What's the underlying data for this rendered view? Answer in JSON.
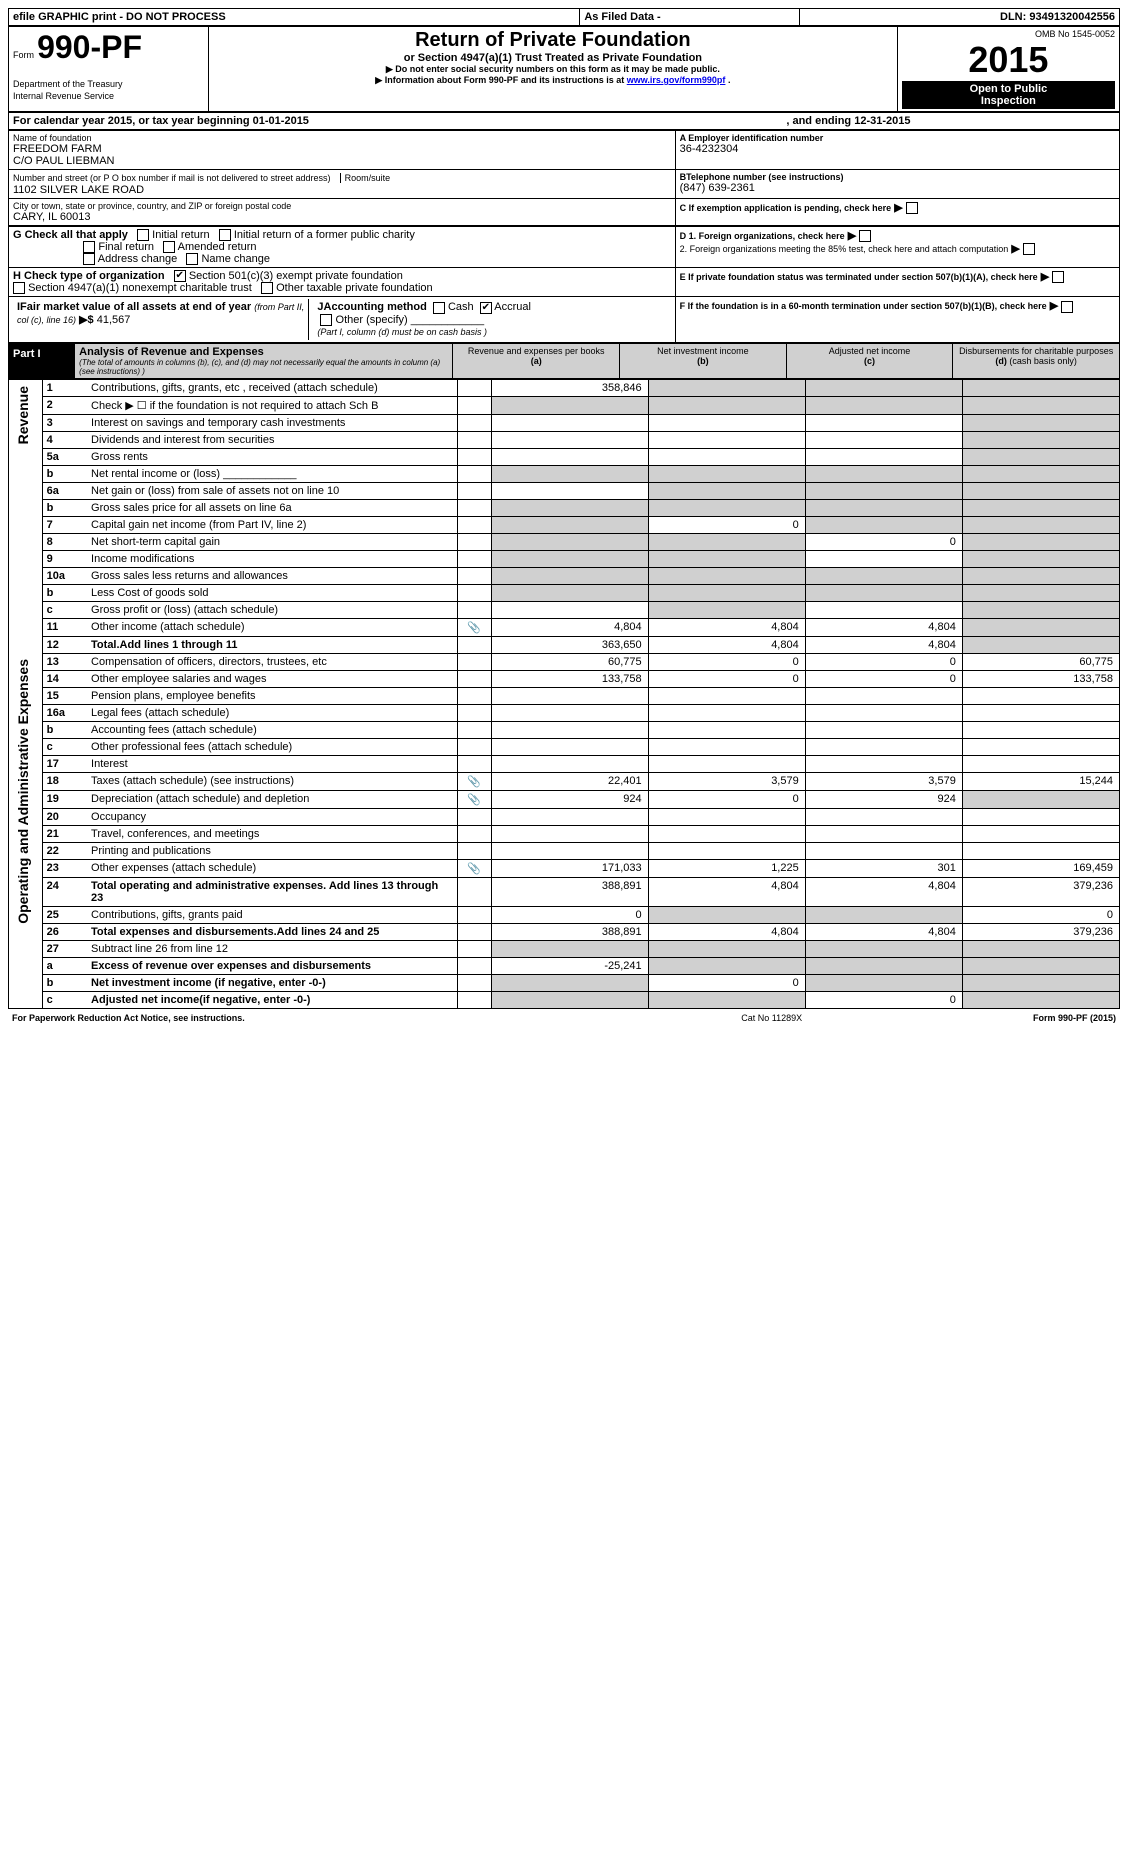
{
  "topbar": {
    "efile": "efile GRAPHIC print - DO NOT PROCESS",
    "asfiled": "As Filed Data -",
    "dln_label": "DLN:",
    "dln": "93491320042556"
  },
  "header": {
    "form_prefix": "Form",
    "form_num": "990-PF",
    "dept": "Department of the Treasury",
    "irs": "Internal Revenue Service",
    "title": "Return of Private Foundation",
    "subtitle": "or Section 4947(a)(1) Trust Treated as Private Foundation",
    "note1": "▶ Do not enter social security numbers on this form as it may be made public.",
    "note2_pre": "▶ Information about Form 990-PF and its instructions is at ",
    "note2_link": "www.irs.gov/form990pf",
    "note2_post": ".",
    "omb": "OMB No 1545-0052",
    "year": "2015",
    "open": "Open to Public",
    "inspection": "Inspection"
  },
  "period": {
    "label_pre": "For calendar year 2015, or tax year beginning ",
    "begin": "01-01-2015",
    "label_mid": ", and ending ",
    "end": "12-31-2015"
  },
  "identity": {
    "name_label": "Name of foundation",
    "name1": "FREEDOM FARM",
    "name2": "C/O PAUL LIEBMAN",
    "addr_label": "Number and street (or P O box number if mail is not delivered to street address)",
    "room_label": "Room/suite",
    "addr": "1102 SILVER LAKE ROAD",
    "city_label": "City or town, state or province, country, and ZIP or foreign postal code",
    "city": "CARY, IL 60013",
    "ein_label": "A Employer identification number",
    "ein": "36-4232304",
    "tel_label": "BTelephone number (see instructions)",
    "tel": "(847) 639-2361",
    "c_label": "C If exemption application is pending, check here"
  },
  "checks": {
    "g_label": "G Check all that apply",
    "g_initial": "Initial return",
    "g_initial_former": "Initial return of a former public charity",
    "g_final": "Final return",
    "g_amended": "Amended return",
    "g_address": "Address change",
    "g_name": "Name change",
    "d1": "D 1. Foreign organizations, check here",
    "d2": "2. Foreign organizations meeting the 85% test, check here and attach computation",
    "e_label": "E If private foundation status was terminated under section 507(b)(1)(A), check here",
    "h_label": "H Check type of organization",
    "h_501c3": "Section 501(c)(3) exempt private foundation",
    "h_4947": "Section 4947(a)(1) nonexempt charitable trust",
    "h_other": "Other taxable private foundation",
    "f_label": "F If the foundation is in a 60-month termination under section 507(b)(1)(B), check here",
    "i_label_pre": "IFair market value of all assets at end of year ",
    "i_label_from": "(from Part II, col (c), line 16)",
    "i_arrow": "▶$",
    "i_value": "41,567",
    "j_label": "JAccounting method",
    "j_cash": "Cash",
    "j_accrual": "Accrual",
    "j_other": "Other (specify)",
    "j_note": "(Part I, column (d) must be on cash basis )"
  },
  "part1": {
    "header": "Part I",
    "title": "Analysis of Revenue and Expenses",
    "subtitle": "(The total of amounts in columns (b), (c), and (d) may not necessarily equal the amounts in column (a) (see instructions) )",
    "col_a": "Revenue and expenses per books",
    "col_a_label": "(a)",
    "col_b": "Net investment income",
    "col_b_label": "(b)",
    "col_c": "Adjusted net income",
    "col_c_label": "(c)",
    "col_d": "Disbursements for charitable purposes",
    "col_d_label": "(d)",
    "col_d_note": "(cash basis only)"
  },
  "sections": {
    "revenue": "Revenue",
    "opex": "Operating and Administrative Expenses"
  },
  "rows": [
    {
      "n": "1",
      "label": "Contributions, gifts, grants, etc , received (attach schedule)",
      "a": "358,846",
      "b": "",
      "c": "",
      "d": "",
      "icon": false,
      "shade_b": true,
      "shade_c": true,
      "shade_d": true
    },
    {
      "n": "2",
      "label": "Check ▶ ☐ if the foundation is not required to attach Sch B",
      "a": "",
      "b": "",
      "c": "",
      "d": "",
      "icon": false,
      "shade_a": true,
      "shade_b": true,
      "shade_c": true,
      "shade_d": true
    },
    {
      "n": "3",
      "label": "Interest on savings and temporary cash investments",
      "a": "",
      "b": "",
      "c": "",
      "d": "",
      "shade_d": true
    },
    {
      "n": "4",
      "label": "Dividends and interest from securities",
      "a": "",
      "b": "",
      "c": "",
      "d": "",
      "shade_d": true
    },
    {
      "n": "5a",
      "label": "Gross rents",
      "a": "",
      "b": "",
      "c": "",
      "d": "",
      "shade_d": true
    },
    {
      "n": "b",
      "label": "Net rental income or (loss) ____________",
      "a": "",
      "b": "",
      "c": "",
      "d": "",
      "shade_a": true,
      "shade_b": true,
      "shade_c": true,
      "shade_d": true
    },
    {
      "n": "6a",
      "label": "Net gain or (loss) from sale of assets not on line 10",
      "a": "",
      "b": "",
      "c": "",
      "d": "",
      "shade_b": true,
      "shade_c": true,
      "shade_d": true
    },
    {
      "n": "b",
      "label": "Gross sales price for all assets on line 6a",
      "a": "",
      "b": "",
      "c": "",
      "d": "",
      "shade_a": true,
      "shade_b": true,
      "shade_c": true,
      "shade_d": true
    },
    {
      "n": "7",
      "label": "Capital gain net income (from Part IV, line 2)",
      "a": "",
      "b": "0",
      "c": "",
      "d": "",
      "shade_a": true,
      "shade_c": true,
      "shade_d": true
    },
    {
      "n": "8",
      "label": "Net short-term capital gain",
      "a": "",
      "b": "",
      "c": "0",
      "d": "",
      "shade_a": true,
      "shade_b": true,
      "shade_d": true
    },
    {
      "n": "9",
      "label": "Income modifications",
      "a": "",
      "b": "",
      "c": "",
      "d": "",
      "shade_a": true,
      "shade_b": true,
      "shade_d": true
    },
    {
      "n": "10a",
      "label": "Gross sales less returns and allowances",
      "a": "",
      "b": "",
      "c": "",
      "d": "",
      "shade_a": true,
      "shade_b": true,
      "shade_c": true,
      "shade_d": true
    },
    {
      "n": "b",
      "label": "Less Cost of goods sold",
      "a": "",
      "b": "",
      "c": "",
      "d": "",
      "shade_a": true,
      "shade_b": true,
      "shade_c": true,
      "shade_d": true
    },
    {
      "n": "c",
      "label": "Gross profit or (loss) (attach schedule)",
      "a": "",
      "b": "",
      "c": "",
      "d": "",
      "shade_b": true,
      "shade_d": true
    },
    {
      "n": "11",
      "label": "Other income (attach schedule)",
      "a": "4,804",
      "b": "4,804",
      "c": "4,804",
      "d": "",
      "icon": true,
      "shade_d": true
    },
    {
      "n": "12",
      "label": "Total.Add lines 1 through 11",
      "a": "363,650",
      "b": "4,804",
      "c": "4,804",
      "d": "",
      "bold": true,
      "shade_d": true
    },
    {
      "n": "13",
      "label": "Compensation of officers, directors, trustees, etc",
      "a": "60,775",
      "b": "0",
      "c": "0",
      "d": "60,775"
    },
    {
      "n": "14",
      "label": "Other employee salaries and wages",
      "a": "133,758",
      "b": "0",
      "c": "0",
      "d": "133,758"
    },
    {
      "n": "15",
      "label": "Pension plans, employee benefits",
      "a": "",
      "b": "",
      "c": "",
      "d": ""
    },
    {
      "n": "16a",
      "label": "Legal fees (attach schedule)",
      "a": "",
      "b": "",
      "c": "",
      "d": ""
    },
    {
      "n": "b",
      "label": "Accounting fees (attach schedule)",
      "a": "",
      "b": "",
      "c": "",
      "d": ""
    },
    {
      "n": "c",
      "label": "Other professional fees (attach schedule)",
      "a": "",
      "b": "",
      "c": "",
      "d": ""
    },
    {
      "n": "17",
      "label": "Interest",
      "a": "",
      "b": "",
      "c": "",
      "d": ""
    },
    {
      "n": "18",
      "label": "Taxes (attach schedule) (see instructions)",
      "a": "22,401",
      "b": "3,579",
      "c": "3,579",
      "d": "15,244",
      "icon": true
    },
    {
      "n": "19",
      "label": "Depreciation (attach schedule) and depletion",
      "a": "924",
      "b": "0",
      "c": "924",
      "d": "",
      "icon": true,
      "shade_d": true
    },
    {
      "n": "20",
      "label": "Occupancy",
      "a": "",
      "b": "",
      "c": "",
      "d": ""
    },
    {
      "n": "21",
      "label": "Travel, conferences, and meetings",
      "a": "",
      "b": "",
      "c": "",
      "d": ""
    },
    {
      "n": "22",
      "label": "Printing and publications",
      "a": "",
      "b": "",
      "c": "",
      "d": ""
    },
    {
      "n": "23",
      "label": "Other expenses (attach schedule)",
      "a": "171,033",
      "b": "1,225",
      "c": "301",
      "d": "169,459",
      "icon": true
    },
    {
      "n": "24",
      "label": "Total operating and administrative expenses. Add lines 13 through 23",
      "a": "388,891",
      "b": "4,804",
      "c": "4,804",
      "d": "379,236",
      "bold": true
    },
    {
      "n": "25",
      "label": "Contributions, gifts, grants paid",
      "a": "0",
      "b": "",
      "c": "",
      "d": "0",
      "shade_b": true,
      "shade_c": true
    },
    {
      "n": "26",
      "label": "Total expenses and disbursements.Add lines 24 and 25",
      "a": "388,891",
      "b": "4,804",
      "c": "4,804",
      "d": "379,236",
      "bold": true
    },
    {
      "n": "27",
      "label": "Subtract line 26 from line 12",
      "a": "",
      "b": "",
      "c": "",
      "d": "",
      "shade_a": true,
      "shade_b": true,
      "shade_c": true,
      "shade_d": true
    },
    {
      "n": "a",
      "label": "Excess of revenue over expenses and disbursements",
      "a": "-25,241",
      "b": "",
      "c": "",
      "d": "",
      "bold": true,
      "shade_b": true,
      "shade_c": true,
      "shade_d": true
    },
    {
      "n": "b",
      "label": "Net investment income (if negative, enter -0-)",
      "a": "",
      "b": "0",
      "c": "",
      "d": "",
      "bold": true,
      "shade_a": true,
      "shade_c": true,
      "shade_d": true
    },
    {
      "n": "c",
      "label": "Adjusted net income(if negative, enter -0-)",
      "a": "",
      "b": "",
      "c": "0",
      "d": "",
      "bold": true,
      "shade_a": true,
      "shade_b": true,
      "shade_d": true
    }
  ],
  "footer": {
    "left": "For Paperwork Reduction Act Notice, see instructions.",
    "mid": "Cat No 11289X",
    "right": "Form 990-PF (2015)"
  }
}
